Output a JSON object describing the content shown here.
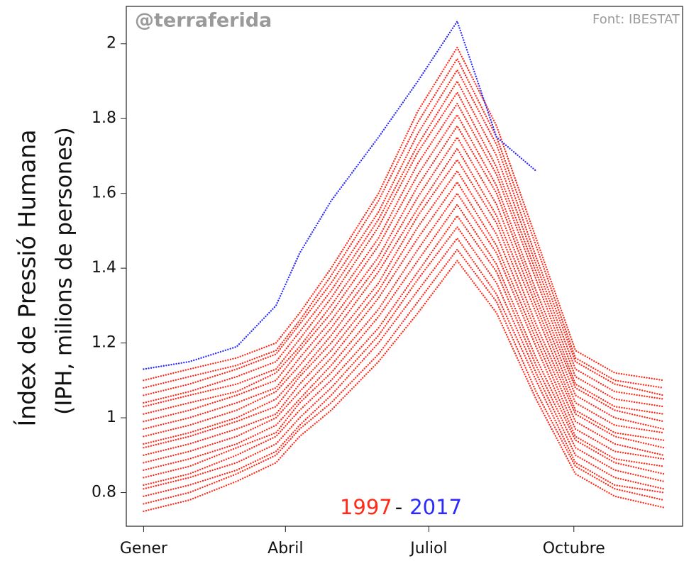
{
  "chart_data": {
    "type": "line",
    "watermark": "@terraferida",
    "source": "Font: IBESTAT",
    "ylabel": [
      "Índex de Pressió Humana",
      "(IPH, milions de persones)"
    ],
    "annotation": {
      "start": "1997",
      "separator": "-",
      "end": "2017"
    },
    "x": [
      1,
      30,
      60,
      85,
      100,
      120,
      150,
      175,
      200,
      225,
      250,
      275,
      300,
      331
    ],
    "xlim": [
      -10,
      343
    ],
    "xticks": [
      {
        "value": 1,
        "label": "Gener"
      },
      {
        "value": 91,
        "label": "Abril"
      },
      {
        "value": 182,
        "label": "Juliol"
      },
      {
        "value": 274,
        "label": "Octubre"
      }
    ],
    "ylim": [
      0.71,
      2.1
    ],
    "yticks": [
      0.8,
      1,
      1.2,
      1.4,
      1.6,
      1.8,
      2
    ],
    "grid": false,
    "series": [
      {
        "color": "#ff2a1a",
        "values": [
          0.75,
          0.78,
          0.83,
          0.88,
          0.95,
          1.02,
          1.15,
          1.28,
          1.42,
          1.28,
          1.05,
          0.85,
          0.79,
          0.76
        ]
      },
      {
        "color": "#ff2a1a",
        "values": [
          0.77,
          0.8,
          0.85,
          0.9,
          0.97,
          1.04,
          1.17,
          1.31,
          1.45,
          1.31,
          1.07,
          0.87,
          0.81,
          0.78
        ]
      },
      {
        "color": "#ff2a1a",
        "values": [
          0.79,
          0.82,
          0.86,
          0.91,
          0.98,
          1.06,
          1.2,
          1.34,
          1.48,
          1.33,
          1.1,
          0.88,
          0.82,
          0.8
        ]
      },
      {
        "color": "#ff2a1a",
        "values": [
          0.81,
          0.84,
          0.88,
          0.93,
          1.0,
          1.08,
          1.22,
          1.37,
          1.51,
          1.36,
          1.12,
          0.9,
          0.84,
          0.81
        ]
      },
      {
        "color": "#ff2a1a",
        "values": [
          0.82,
          0.85,
          0.9,
          0.95,
          1.02,
          1.1,
          1.24,
          1.39,
          1.54,
          1.39,
          1.14,
          0.92,
          0.86,
          0.83
        ]
      },
      {
        "color": "#ff2a1a",
        "values": [
          0.84,
          0.87,
          0.92,
          0.96,
          1.04,
          1.12,
          1.27,
          1.42,
          1.57,
          1.41,
          1.16,
          0.94,
          0.88,
          0.85
        ]
      },
      {
        "color": "#ff2a1a",
        "values": [
          0.86,
          0.89,
          0.93,
          0.98,
          1.05,
          1.14,
          1.29,
          1.45,
          1.6,
          1.44,
          1.19,
          0.95,
          0.89,
          0.87
        ]
      },
      {
        "color": "#ff2a1a",
        "values": [
          0.88,
          0.91,
          0.95,
          1.0,
          1.07,
          1.16,
          1.32,
          1.48,
          1.63,
          1.46,
          1.21,
          0.97,
          0.91,
          0.89
        ]
      },
      {
        "color": "#ff2a1a",
        "values": [
          0.9,
          0.93,
          0.97,
          1.01,
          1.09,
          1.18,
          1.34,
          1.51,
          1.66,
          1.49,
          1.23,
          0.99,
          0.93,
          0.9
        ]
      },
      {
        "color": "#ff2a1a",
        "values": [
          0.92,
          0.95,
          0.99,
          1.03,
          1.11,
          1.2,
          1.36,
          1.54,
          1.69,
          1.52,
          1.25,
          1.01,
          0.95,
          0.92
        ]
      },
      {
        "color": "#ff2a1a",
        "values": [
          0.93,
          0.96,
          1.0,
          1.05,
          1.12,
          1.22,
          1.39,
          1.56,
          1.72,
          1.54,
          1.28,
          1.02,
          0.96,
          0.94
        ]
      },
      {
        "color": "#ff2a1a",
        "values": [
          0.95,
          0.98,
          1.02,
          1.07,
          1.14,
          1.24,
          1.41,
          1.59,
          1.75,
          1.57,
          1.3,
          1.04,
          0.98,
          0.96
        ]
      },
      {
        "color": "#ff2a1a",
        "values": [
          0.97,
          1.0,
          1.04,
          1.08,
          1.16,
          1.26,
          1.43,
          1.62,
          1.78,
          1.6,
          1.32,
          1.06,
          1.0,
          0.97
        ]
      },
      {
        "color": "#ff2a1a",
        "values": [
          0.99,
          1.02,
          1.06,
          1.1,
          1.18,
          1.28,
          1.46,
          1.65,
          1.81,
          1.62,
          1.34,
          1.08,
          1.02,
          0.99
        ]
      },
      {
        "color": "#ff2a1a",
        "values": [
          1.01,
          1.04,
          1.07,
          1.12,
          1.19,
          1.3,
          1.48,
          1.68,
          1.84,
          1.65,
          1.37,
          1.09,
          1.03,
          1.01
        ]
      },
      {
        "color": "#ff2a1a",
        "values": [
          1.03,
          1.06,
          1.09,
          1.13,
          1.21,
          1.32,
          1.51,
          1.71,
          1.87,
          1.67,
          1.39,
          1.11,
          1.05,
          1.03
        ]
      },
      {
        "color": "#ff2a1a",
        "values": [
          1.04,
          1.07,
          1.11,
          1.15,
          1.23,
          1.34,
          1.53,
          1.73,
          1.9,
          1.7,
          1.41,
          1.13,
          1.07,
          1.05
        ]
      },
      {
        "color": "#ff2a1a",
        "values": [
          1.06,
          1.09,
          1.13,
          1.17,
          1.25,
          1.36,
          1.55,
          1.76,
          1.93,
          1.73,
          1.43,
          1.15,
          1.09,
          1.06
        ]
      },
      {
        "color": "#ff2a1a",
        "values": [
          1.08,
          1.11,
          1.14,
          1.18,
          1.26,
          1.38,
          1.58,
          1.79,
          1.96,
          1.75,
          1.46,
          1.16,
          1.1,
          1.08
        ]
      },
      {
        "color": "#ff2a1a",
        "values": [
          1.1,
          1.13,
          1.16,
          1.2,
          1.28,
          1.4,
          1.6,
          1.82,
          1.99,
          1.78,
          1.48,
          1.18,
          1.12,
          1.1
        ]
      },
      {
        "color": "#2a2aff",
        "values": [
          1.13,
          1.15,
          1.19,
          1.3,
          1.44,
          1.58,
          1.75,
          1.9,
          2.06,
          1.75,
          1.66,
          null,
          null,
          null
        ]
      }
    ]
  }
}
